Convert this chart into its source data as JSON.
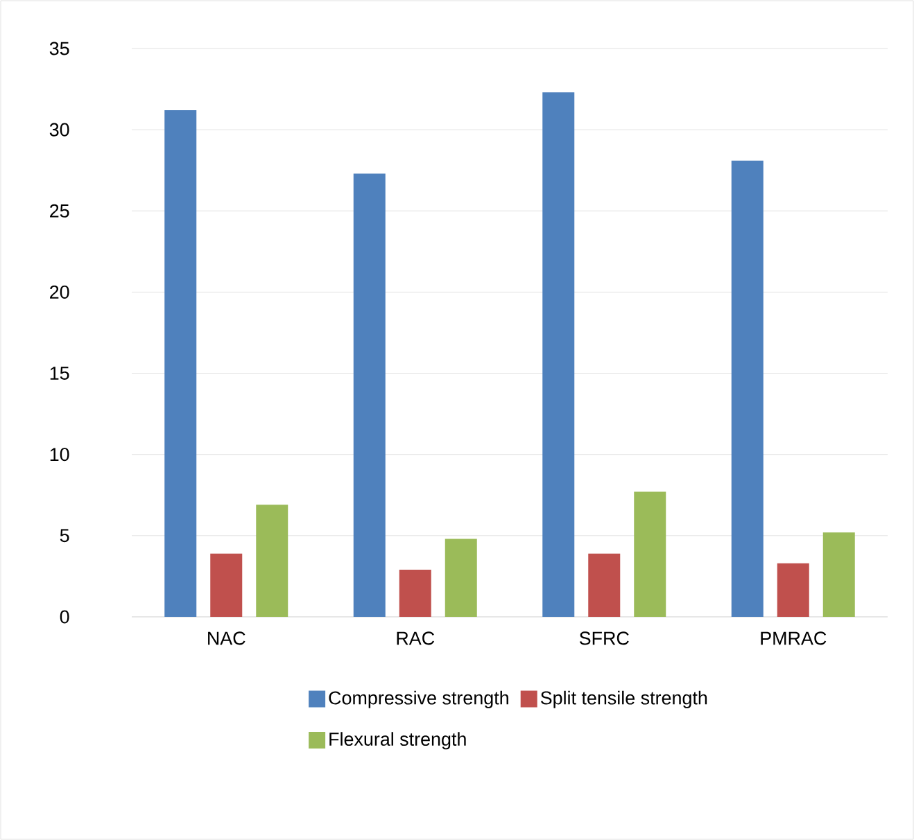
{
  "chart_data": {
    "type": "bar",
    "categories": [
      "NAC",
      "RAC",
      "SFRC",
      "PMRAC"
    ],
    "series": [
      {
        "name": "Compressive strength",
        "color": "#4f81bd",
        "values": [
          31.2,
          27.3,
          32.3,
          28.1
        ]
      },
      {
        "name": "Split tensile strength",
        "color": "#c0504d",
        "values": [
          3.9,
          2.9,
          3.9,
          3.3
        ]
      },
      {
        "name": "Flexural strength",
        "color": "#9bbb59",
        "values": [
          6.9,
          4.8,
          7.7,
          5.2
        ]
      }
    ],
    "ylim": [
      0,
      35
    ],
    "yticks": [
      0,
      5,
      10,
      15,
      20,
      25,
      30,
      35
    ],
    "grid": "y",
    "legend": "bottom"
  }
}
